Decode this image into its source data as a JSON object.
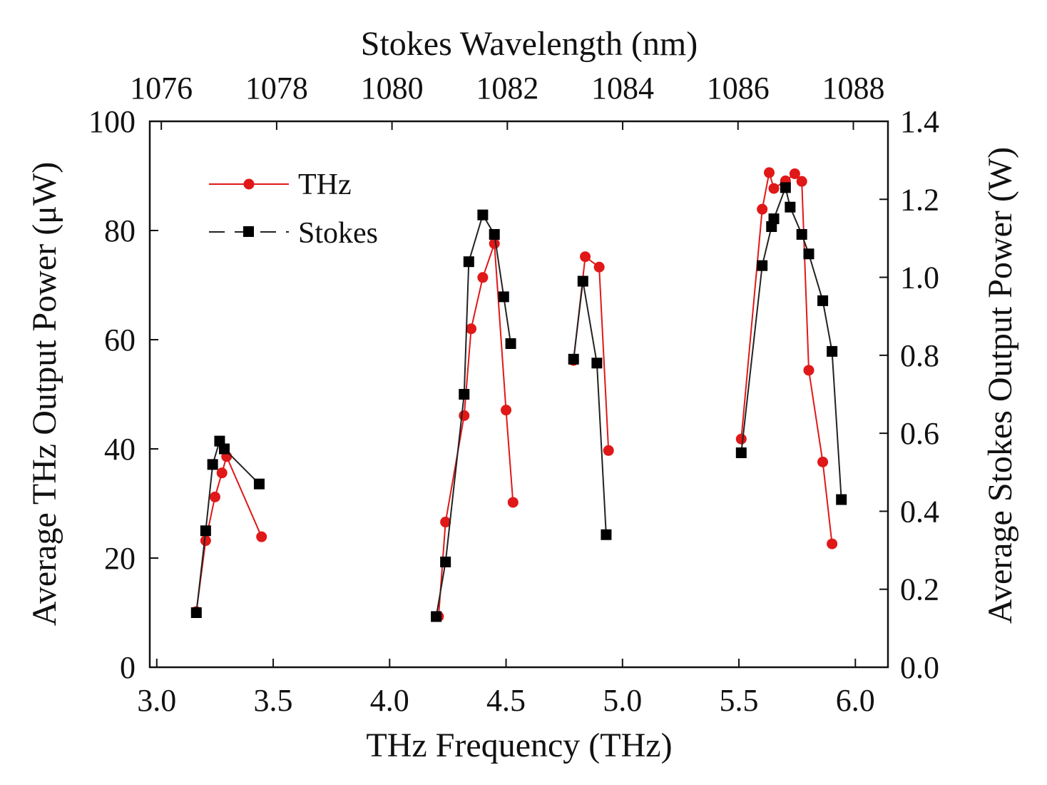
{
  "chart_data": {
    "type": "line",
    "xlabel": "THz Frequency (THz)",
    "top_xlabel": "Stokes Wavelength (nm)",
    "ylabel": "Average THz Output Power (μW)",
    "y2label": "Average Stokes Output Power (W)",
    "xlim": [
      2.97,
      6.14
    ],
    "ylim": [
      0,
      100
    ],
    "y2lim": [
      0,
      1.4
    ],
    "top_xlim": [
      1075.8,
      1088.6
    ],
    "x_ticks": [
      "3.0",
      "3.5",
      "4.0",
      "4.5",
      "5.0",
      "5.5",
      "6.0"
    ],
    "top_x_ticks": [
      "1076",
      "1078",
      "1080",
      "1082",
      "1084",
      "1086",
      "1088"
    ],
    "y_ticks": [
      "0",
      "20",
      "40",
      "60",
      "80",
      "100"
    ],
    "y2_ticks": [
      "0.0",
      "0.2",
      "0.4",
      "0.6",
      "0.8",
      "1.0",
      "1.2",
      "1.4"
    ],
    "grid": false,
    "legend_position": "top-left",
    "series": [
      {
        "name": "THz",
        "axis": "left",
        "color": "#e01818",
        "marker": "circle",
        "line_style": "solid",
        "segments": [
          [
            [
              3.17,
              10.2
            ],
            [
              3.21,
              23.2
            ],
            [
              3.25,
              31.2
            ],
            [
              3.28,
              35.6
            ],
            [
              3.3,
              38.6
            ],
            [
              3.45,
              23.9
            ]
          ],
          [
            [
              4.21,
              9.3
            ],
            [
              4.24,
              26.6
            ],
            [
              4.32,
              46.1
            ],
            [
              4.35,
              62.0
            ],
            [
              4.4,
              71.4
            ],
            [
              4.45,
              77.6
            ],
            [
              4.5,
              47.1
            ],
            [
              4.53,
              30.2
            ]
          ],
          [
            [
              4.79,
              56.2
            ],
            [
              4.84,
              75.2
            ],
            [
              4.9,
              73.3
            ],
            [
              4.94,
              39.7
            ]
          ],
          [
            [
              5.51,
              41.8
            ],
            [
              5.6,
              83.9
            ],
            [
              5.63,
              90.6
            ],
            [
              5.65,
              87.7
            ],
            [
              5.7,
              89.1
            ],
            [
              5.74,
              90.4
            ],
            [
              5.77,
              89.0
            ],
            [
              5.8,
              54.4
            ],
            [
              5.86,
              37.6
            ],
            [
              5.9,
              22.6
            ]
          ]
        ]
      },
      {
        "name": "Stokes",
        "axis": "right",
        "color": "#000000",
        "marker": "square",
        "line_style": "dashed",
        "segments": [
          [
            [
              3.17,
              0.14
            ],
            [
              3.21,
              0.35
            ],
            [
              3.24,
              0.52
            ],
            [
              3.27,
              0.58
            ],
            [
              3.29,
              0.56
            ],
            [
              3.44,
              0.47
            ]
          ],
          [
            [
              4.2,
              0.13
            ],
            [
              4.24,
              0.27
            ],
            [
              4.32,
              0.7
            ],
            [
              4.34,
              1.04
            ],
            [
              4.4,
              1.16
            ],
            [
              4.45,
              1.11
            ],
            [
              4.49,
              0.95
            ],
            [
              4.52,
              0.83
            ]
          ],
          [
            [
              4.79,
              0.79
            ],
            [
              4.83,
              0.99
            ],
            [
              4.89,
              0.78
            ],
            [
              4.93,
              0.34
            ]
          ],
          [
            [
              5.51,
              0.55
            ],
            [
              5.6,
              1.03
            ],
            [
              5.64,
              1.13
            ],
            [
              5.65,
              1.15
            ],
            [
              5.7,
              1.23
            ],
            [
              5.72,
              1.18
            ],
            [
              5.77,
              1.11
            ],
            [
              5.8,
              1.06
            ],
            [
              5.86,
              0.94
            ],
            [
              5.9,
              0.81
            ],
            [
              5.94,
              0.43
            ]
          ]
        ]
      }
    ]
  }
}
